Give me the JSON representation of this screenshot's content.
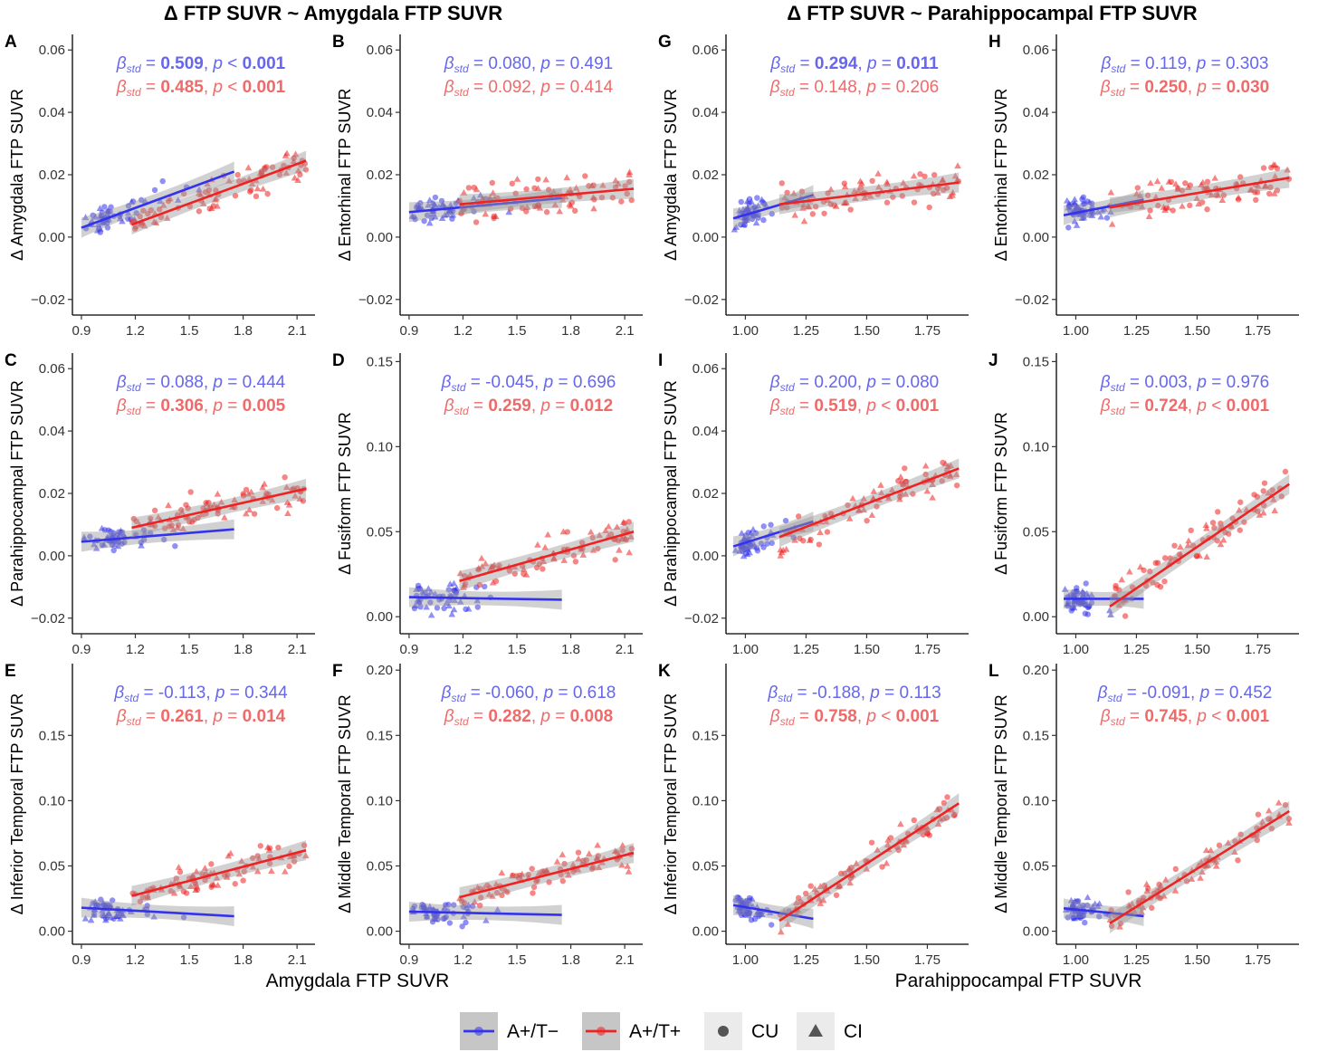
{
  "colors": {
    "blue": "#3333ee",
    "red": "#ee2222",
    "blue_text": "#6666ee",
    "red_text": "#f06a6a",
    "band": "#9a9a9a"
  },
  "header": {
    "left_title": "Δ FTP SUVR ~ Amygdala FTP SUVR",
    "right_title": "Δ FTP SUVR ~ Parahippocampal FTP SUVR",
    "left_xlabel": "Amygdala FTP SUVR",
    "right_xlabel": "Parahippocampal FTP SUVR"
  },
  "legend": {
    "items": [
      {
        "label": "A+/T−",
        "kind": "line",
        "color": "#3333ee"
      },
      {
        "label": "A+/T+",
        "kind": "line",
        "color": "#ee2222"
      },
      {
        "label": "CU",
        "kind": "circle"
      },
      {
        "label": "CI",
        "kind": "triangle"
      }
    ]
  },
  "chart_data": [
    {
      "panel": "A",
      "type": "scatter",
      "ylabel": "Δ Amygdala FTP SUVR",
      "xlim": [
        0.85,
        2.2
      ],
      "ylim": [
        -0.025,
        0.065
      ],
      "xticks": [
        "0.9",
        "1.2",
        "1.5",
        "1.8",
        "2.1"
      ],
      "yticks": [
        "−0.02",
        "0.00",
        "0.02",
        "0.04",
        "0.06"
      ],
      "stats": [
        {
          "beta": "0.509",
          "p": "< 0.001",
          "beta_bold": true,
          "p_bold": true
        },
        {
          "beta": "0.485",
          "p": "< 0.001",
          "beta_bold": true,
          "p_bold": true
        }
      ],
      "series": [
        {
          "name": "A+/T−",
          "x": [
            0.9,
            1.75
          ],
          "y": [
            0.003,
            0.021
          ]
        },
        {
          "name": "A+/T+",
          "x": [
            1.18,
            2.15
          ],
          "y": [
            0.004,
            0.0245
          ]
        }
      ]
    },
    {
      "panel": "B",
      "type": "scatter",
      "ylabel": "Δ Entorhinal FTP SUVR",
      "xlim": [
        0.85,
        2.2
      ],
      "ylim": [
        -0.025,
        0.065
      ],
      "xticks": [
        "0.9",
        "1.2",
        "1.5",
        "1.8",
        "2.1"
      ],
      "yticks": [
        "−0.02",
        "0.00",
        "0.02",
        "0.04",
        "0.06"
      ],
      "stats": [
        {
          "beta": "0.080",
          "p": "= 0.491"
        },
        {
          "beta": "0.092",
          "p": "= 0.414"
        }
      ],
      "series": [
        {
          "name": "A+/T−",
          "x": [
            0.9,
            1.75
          ],
          "y": [
            0.008,
            0.0125
          ]
        },
        {
          "name": "A+/T+",
          "x": [
            1.18,
            2.15
          ],
          "y": [
            0.0105,
            0.0155
          ]
        }
      ]
    },
    {
      "panel": "C",
      "type": "scatter",
      "ylabel": "Δ Parahippocampal FTP SUVR",
      "xlim": [
        0.85,
        2.2
      ],
      "ylim": [
        -0.025,
        0.065
      ],
      "xticks": [
        "0.9",
        "1.2",
        "1.5",
        "1.8",
        "2.1"
      ],
      "yticks": [
        "−0.02",
        "0.00",
        "0.02",
        "0.04",
        "0.06"
      ],
      "stats": [
        {
          "beta": "0.088",
          "p": "= 0.444"
        },
        {
          "beta": "0.306",
          "p": "= 0.005",
          "beta_bold": true,
          "p_bold": true
        }
      ],
      "series": [
        {
          "name": "A+/T−",
          "x": [
            0.9,
            1.75
          ],
          "y": [
            0.0045,
            0.0085
          ]
        },
        {
          "name": "A+/T+",
          "x": [
            1.18,
            2.15
          ],
          "y": [
            0.009,
            0.0215
          ]
        }
      ]
    },
    {
      "panel": "D",
      "type": "scatter",
      "ylabel": "Δ Fusiform FTP SUVR",
      "xlim": [
        0.85,
        2.2
      ],
      "ylim": [
        -0.01,
        0.155
      ],
      "xticks": [
        "0.9",
        "1.2",
        "1.5",
        "1.8",
        "2.1"
      ],
      "yticks": [
        "0.00",
        "0.05",
        "0.10",
        "0.15"
      ],
      "stats": [
        {
          "beta": "-0.045",
          "p": "= 0.696"
        },
        {
          "beta": "0.259",
          "p": "= 0.012",
          "beta_bold": true,
          "p_bold": true
        }
      ],
      "series": [
        {
          "name": "A+/T−",
          "x": [
            0.9,
            1.75
          ],
          "y": [
            0.0115,
            0.01
          ]
        },
        {
          "name": "A+/T+",
          "x": [
            1.18,
            2.15
          ],
          "y": [
            0.021,
            0.05
          ]
        }
      ]
    },
    {
      "panel": "E",
      "type": "scatter",
      "ylabel": "Δ Inferior Temporal FTP SUVR",
      "xlim": [
        0.85,
        2.2
      ],
      "ylim": [
        -0.01,
        0.205
      ],
      "xticks": [
        "0.9",
        "1.2",
        "1.5",
        "1.8",
        "2.1"
      ],
      "yticks": [
        "0.00",
        "0.05",
        "0.10",
        "0.15"
      ],
      "stats": [
        {
          "beta": "-0.113",
          "p": "= 0.344"
        },
        {
          "beta": "0.261",
          "p": "= 0.014",
          "beta_bold": true,
          "p_bold": true
        }
      ],
      "series": [
        {
          "name": "A+/T−",
          "x": [
            0.9,
            1.75
          ],
          "y": [
            0.018,
            0.0115
          ]
        },
        {
          "name": "A+/T+",
          "x": [
            1.18,
            2.15
          ],
          "y": [
            0.027,
            0.062
          ]
        }
      ]
    },
    {
      "panel": "F",
      "type": "scatter",
      "ylabel": "Δ Middle Temporal FTP SUVR",
      "xlim": [
        0.85,
        2.2
      ],
      "ylim": [
        -0.01,
        0.205
      ],
      "xticks": [
        "0.9",
        "1.2",
        "1.5",
        "1.8",
        "2.1"
      ],
      "yticks": [
        "0.00",
        "0.05",
        "0.10",
        "0.15",
        "0.20"
      ],
      "stats": [
        {
          "beta": "-0.060",
          "p": "= 0.618"
        },
        {
          "beta": "0.282",
          "p": "= 0.008",
          "beta_bold": true,
          "p_bold": true
        }
      ],
      "series": [
        {
          "name": "A+/T−",
          "x": [
            0.9,
            1.75
          ],
          "y": [
            0.015,
            0.0125
          ]
        },
        {
          "name": "A+/T+",
          "x": [
            1.18,
            2.15
          ],
          "y": [
            0.026,
            0.06
          ]
        }
      ]
    },
    {
      "panel": "G",
      "type": "scatter",
      "ylabel": "Δ Amygdala FTP SUVR",
      "xlim": [
        0.92,
        1.92
      ],
      "ylim": [
        -0.025,
        0.065
      ],
      "xticks": [
        "1.00",
        "1.25",
        "1.50",
        "1.75"
      ],
      "yticks": [
        "−0.02",
        "0.00",
        "0.02",
        "0.04",
        "0.06"
      ],
      "stats": [
        {
          "beta": "0.294",
          "p": "= 0.011",
          "beta_bold": true,
          "p_bold": true
        },
        {
          "beta": "0.148",
          "p": "= 0.206"
        }
      ],
      "series": [
        {
          "name": "A+/T−",
          "x": [
            0.95,
            1.28
          ],
          "y": [
            0.006,
            0.0135
          ]
        },
        {
          "name": "A+/T+",
          "x": [
            1.14,
            1.88
          ],
          "y": [
            0.0105,
            0.0175
          ]
        }
      ]
    },
    {
      "panel": "H",
      "type": "scatter",
      "ylabel": "Δ Entorhinal FTP SUVR",
      "xlim": [
        0.92,
        1.92
      ],
      "ylim": [
        -0.025,
        0.065
      ],
      "xticks": [
        "1.00",
        "1.25",
        "1.50",
        "1.75"
      ],
      "yticks": [
        "−0.02",
        "0.00",
        "0.02",
        "0.04",
        "0.06"
      ],
      "stats": [
        {
          "beta": "0.119",
          "p": "= 0.303"
        },
        {
          "beta": "0.250",
          "p": "= 0.030",
          "beta_bold": true,
          "p_bold": true
        }
      ],
      "series": [
        {
          "name": "A+/T−",
          "x": [
            0.95,
            1.28
          ],
          "y": [
            0.007,
            0.012
          ]
        },
        {
          "name": "A+/T+",
          "x": [
            1.14,
            1.88
          ],
          "y": [
            0.0095,
            0.019
          ]
        }
      ]
    },
    {
      "panel": "I",
      "type": "scatter",
      "ylabel": "Δ Parahippocampal FTP SUVR",
      "xlim": [
        0.92,
        1.92
      ],
      "ylim": [
        -0.025,
        0.065
      ],
      "xticks": [
        "1.00",
        "1.25",
        "1.50",
        "1.75"
      ],
      "yticks": [
        "−0.02",
        "0.00",
        "0.02",
        "0.04",
        "0.06"
      ],
      "stats": [
        {
          "beta": "0.200",
          "p": "= 0.080"
        },
        {
          "beta": "0.519",
          "p": "< 0.001",
          "beta_bold": true,
          "p_bold": true
        }
      ],
      "series": [
        {
          "name": "A+/T−",
          "x": [
            0.95,
            1.28
          ],
          "y": [
            0.003,
            0.011
          ]
        },
        {
          "name": "A+/T+",
          "x": [
            1.14,
            1.88
          ],
          "y": [
            0.006,
            0.028
          ]
        }
      ]
    },
    {
      "panel": "J",
      "type": "scatter",
      "ylabel": "Δ Fusiform FTP SUVR",
      "xlim": [
        0.92,
        1.92
      ],
      "ylim": [
        -0.01,
        0.155
      ],
      "xticks": [
        "1.00",
        "1.25",
        "1.50",
        "1.75"
      ],
      "yticks": [
        "0.00",
        "0.05",
        "0.10",
        "0.15"
      ],
      "stats": [
        {
          "beta": "0.003",
          "p": "= 0.976"
        },
        {
          "beta": "0.724",
          "p": "< 0.001",
          "beta_bold": true,
          "p_bold": true
        }
      ],
      "series": [
        {
          "name": "A+/T−",
          "x": [
            0.95,
            1.28
          ],
          "y": [
            0.0105,
            0.0105
          ]
        },
        {
          "name": "A+/T+",
          "x": [
            1.14,
            1.88
          ],
          "y": [
            0.006,
            0.078
          ]
        }
      ]
    },
    {
      "panel": "K",
      "type": "scatter",
      "ylabel": "Δ Inferior Temporal FTP SUVR",
      "xlim": [
        0.92,
        1.92
      ],
      "ylim": [
        -0.01,
        0.205
      ],
      "xticks": [
        "1.00",
        "1.25",
        "1.50",
        "1.75"
      ],
      "yticks": [
        "0.00",
        "0.05",
        "0.10",
        "0.15"
      ],
      "stats": [
        {
          "beta": "-0.188",
          "p": "= 0.113"
        },
        {
          "beta": "0.758",
          "p": "< 0.001",
          "beta_bold": true,
          "p_bold": true
        }
      ],
      "series": [
        {
          "name": "A+/T−",
          "x": [
            0.95,
            1.28
          ],
          "y": [
            0.02,
            0.0095
          ]
        },
        {
          "name": "A+/T+",
          "x": [
            1.14,
            1.88
          ],
          "y": [
            0.008,
            0.098
          ]
        }
      ]
    },
    {
      "panel": "L",
      "type": "scatter",
      "ylabel": "Δ Middle Temporal FTP SUVR",
      "xlim": [
        0.92,
        1.92
      ],
      "ylim": [
        -0.01,
        0.205
      ],
      "xticks": [
        "1.00",
        "1.25",
        "1.50",
        "1.75"
      ],
      "yticks": [
        "0.00",
        "0.05",
        "0.10",
        "0.15",
        "0.20"
      ],
      "stats": [
        {
          "beta": "-0.091",
          "p": "= 0.452"
        },
        {
          "beta": "0.745",
          "p": "< 0.001",
          "beta_bold": true,
          "p_bold": true
        }
      ],
      "series": [
        {
          "name": "A+/T−",
          "x": [
            0.95,
            1.28
          ],
          "y": [
            0.0175,
            0.0115
          ]
        },
        {
          "name": "A+/T+",
          "x": [
            1.14,
            1.88
          ],
          "y": [
            0.006,
            0.092
          ]
        }
      ]
    }
  ]
}
